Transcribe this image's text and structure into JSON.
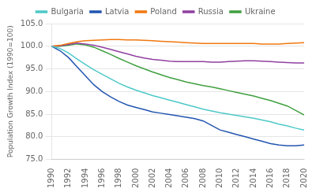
{
  "chart_data": {
    "type": "line",
    "ylabel": "Population Growth Index (1990=100)",
    "x": [
      1990,
      1991,
      1992,
      1993,
      1994,
      1995,
      1996,
      1997,
      1998,
      1999,
      2000,
      2001,
      2002,
      2003,
      2004,
      2005,
      2006,
      2007,
      2008,
      2009,
      2010,
      2011,
      2012,
      2013,
      2014,
      2015,
      2016,
      2017,
      2018,
      2019,
      2020
    ],
    "series": [
      {
        "name": "Bulgaria",
        "color": "#4ec8c8",
        "values": [
          100,
          99.5,
          98.5,
          97.2,
          96.0,
          94.8,
          93.8,
          92.8,
          91.8,
          91.0,
          90.3,
          89.7,
          89.1,
          88.6,
          88.1,
          87.6,
          87.1,
          86.6,
          86.1,
          85.7,
          85.3,
          85.0,
          84.7,
          84.4,
          84.1,
          83.7,
          83.3,
          82.8,
          82.4,
          81.9,
          81.5
        ]
      },
      {
        "name": "Latvia",
        "color": "#2255b0",
        "values": [
          100,
          99.0,
          97.5,
          95.5,
          93.5,
          91.5,
          90.0,
          88.8,
          87.8,
          87.0,
          86.5,
          86.0,
          85.5,
          85.2,
          84.9,
          84.6,
          84.3,
          84.0,
          83.5,
          82.5,
          81.5,
          81.0,
          80.5,
          80.0,
          79.5,
          79.0,
          78.5,
          78.2,
          78.0,
          78.0,
          78.2
        ]
      },
      {
        "name": "Poland",
        "color": "#f07810",
        "values": [
          100,
          100.2,
          100.6,
          101.0,
          101.2,
          101.3,
          101.4,
          101.5,
          101.5,
          101.4,
          101.4,
          101.3,
          101.2,
          101.1,
          101.0,
          100.9,
          100.8,
          100.7,
          100.6,
          100.6,
          100.6,
          100.6,
          100.6,
          100.6,
          100.6,
          100.5,
          100.5,
          100.5,
          100.6,
          100.7,
          100.8
        ]
      },
      {
        "name": "Russia",
        "color": "#9040a0",
        "values": [
          100,
          100.1,
          100.4,
          100.7,
          100.5,
          100.2,
          99.8,
          99.3,
          98.8,
          98.3,
          97.8,
          97.4,
          97.1,
          96.9,
          96.7,
          96.6,
          96.6,
          96.6,
          96.6,
          96.5,
          96.5,
          96.6,
          96.7,
          96.8,
          96.8,
          96.7,
          96.6,
          96.5,
          96.4,
          96.3,
          96.3
        ]
      },
      {
        "name": "Ukraine",
        "color": "#40a040",
        "values": [
          100,
          100.0,
          100.2,
          100.5,
          100.3,
          99.8,
          99.0,
          98.2,
          97.3,
          96.5,
          95.7,
          95.0,
          94.3,
          93.7,
          93.1,
          92.6,
          92.1,
          91.7,
          91.3,
          91.0,
          90.6,
          90.2,
          89.8,
          89.4,
          89.0,
          88.5,
          88.0,
          87.4,
          86.8,
          85.8,
          84.8
        ]
      }
    ],
    "xlim": [
      1990,
      2020
    ],
    "xticks": [
      1990,
      1992,
      1994,
      1996,
      1998,
      2000,
      2002,
      2004,
      2006,
      2008,
      2010,
      2012,
      2014,
      2016,
      2018,
      2020
    ],
    "ylim": [
      75.0,
      105.0
    ],
    "yticks": [
      {
        "value": 75.0,
        "label": "75.0"
      },
      {
        "value": 80.0,
        "label": "80.0"
      },
      {
        "value": 85.0,
        "label": "85.0"
      },
      {
        "value": 90.0,
        "label": "90.0"
      },
      {
        "value": 95.0,
        "label": "95.0"
      },
      {
        "value": 100.0,
        "label": "100.0"
      },
      {
        "value": 105.0,
        "label": "105.0"
      }
    ],
    "grid": "y",
    "legend": "top"
  }
}
